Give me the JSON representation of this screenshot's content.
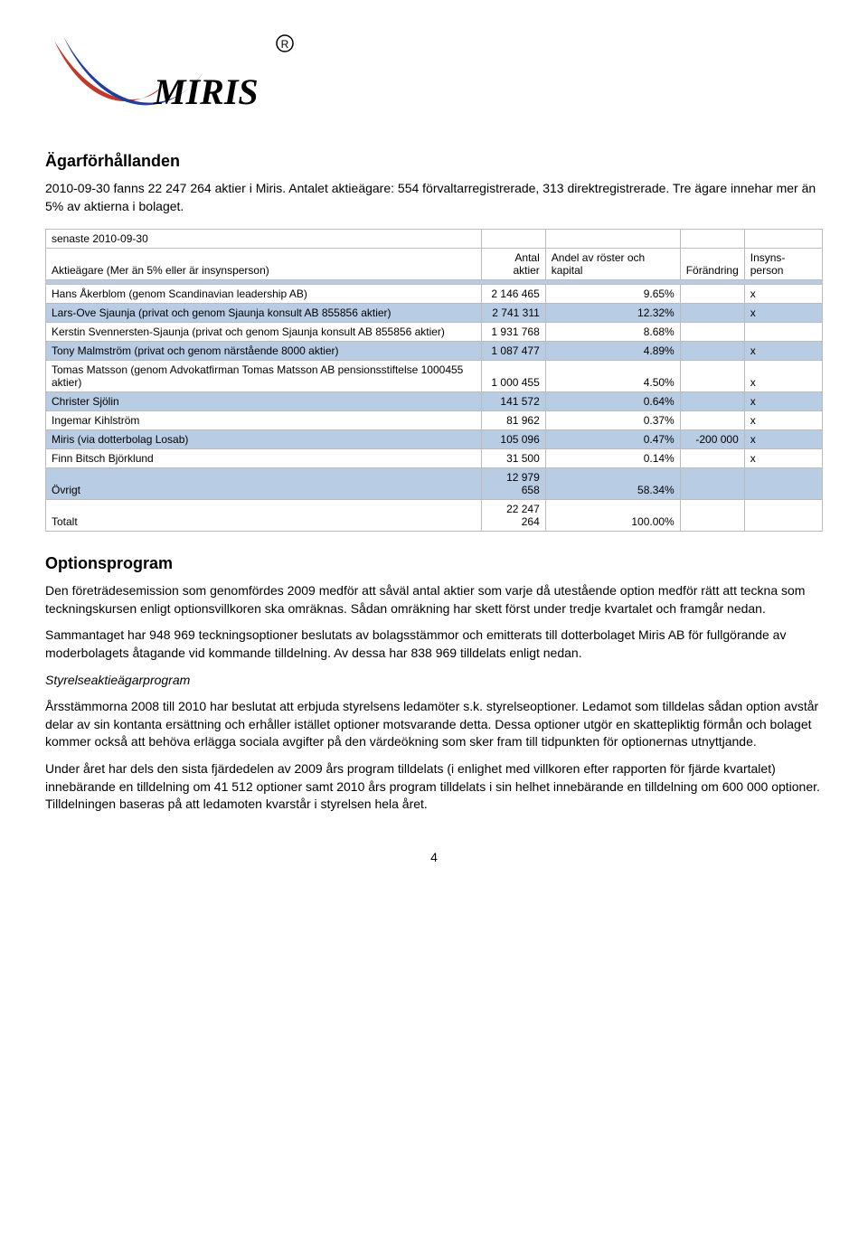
{
  "logo": {
    "text": "MIRIS",
    "reg_mark": "®",
    "swoosh_red": "#c0392b",
    "swoosh_blue": "#1f3f9a",
    "text_color": "#000000"
  },
  "section_owner": {
    "heading": "Ägarförhållanden",
    "para1": "2010-09-30 fanns 22 247 264 aktier i Miris. Antalet aktieägare: 554 förvaltarregistrerade, 313 direktregistrerade. Tre ägare innehar mer än 5% av aktierna i bolaget."
  },
  "table": {
    "colors": {
      "row_blue": "#b8cce4",
      "row_white": "#ffffff",
      "border": "#bbbbbb"
    },
    "date_row": "senaste 2010-09-30",
    "headers": {
      "owner": "Aktieägare (Mer än 5% eller är insynsperson)",
      "shares": "Antal aktier",
      "percent": "Andel av röster och kapital",
      "change": "Förändring",
      "insider": "Insyns-person"
    },
    "rows": [
      {
        "owner": "Hans Åkerblom (genom Scandinavian leadership AB)",
        "shares": "2 146 465",
        "pct": "9.65%",
        "change": "",
        "ins": "x",
        "alt": "white"
      },
      {
        "owner": "Lars-Ove Sjaunja (privat och genom Sjaunja konsult AB 855856 aktier)",
        "shares": "2 741 311",
        "pct": "12.32%",
        "change": "",
        "ins": "x",
        "alt": "blue"
      },
      {
        "owner": "Kerstin Svennersten-Sjaunja (privat och genom Sjaunja konsult AB 855856 aktier)",
        "shares": "1 931 768",
        "pct": "8.68%",
        "change": "",
        "ins": "",
        "alt": "white"
      },
      {
        "owner": "Tony Malmström (privat och genom närstående 8000 aktier)",
        "shares": "1 087 477",
        "pct": "4.89%",
        "change": "",
        "ins": "x",
        "alt": "blue"
      },
      {
        "owner": "Tomas Matsson (genom Advokatfirman Tomas Matsson AB pensionsstiftelse 1000455 aktier)",
        "shares": "1 000 455",
        "pct": "4.50%",
        "change": "",
        "ins": "x",
        "alt": "white"
      },
      {
        "owner": "Christer Sjölin",
        "shares": "141 572",
        "pct": "0.64%",
        "change": "",
        "ins": "x",
        "alt": "blue"
      },
      {
        "owner": "Ingemar Kihlström",
        "shares": "81 962",
        "pct": "0.37%",
        "change": "",
        "ins": "x",
        "alt": "white"
      },
      {
        "owner": "Miris (via dotterbolag Losab)",
        "shares": "105 096",
        "pct": "0.47%",
        "change": "-200 000",
        "ins": "x",
        "alt": "blue"
      },
      {
        "owner": "Finn Bitsch Björklund",
        "shares": "31 500",
        "pct": "0.14%",
        "change": "",
        "ins": "x",
        "alt": "white"
      },
      {
        "owner": "Övrigt",
        "shares": "12 979 658",
        "pct": "58.34%",
        "change": "",
        "ins": "",
        "alt": "blue"
      },
      {
        "owner": "Totalt",
        "shares": "22 247 264",
        "pct": "100.00%",
        "change": "",
        "ins": "",
        "alt": "white"
      }
    ]
  },
  "section_options": {
    "heading": "Optionsprogram",
    "para1": "Den företrädesemission som genomfördes 2009 medför att såväl antal aktier som varje då utestående option medför rätt att teckna som teckningskursen enligt optionsvillkoren ska omräknas. Sådan omräkning har skett först under tredje kvartalet och framgår nedan.",
    "para2": "Sammantaget har 948 969 teckningsoptioner beslutats av bolagsstämmor och emitterats till dotterbolaget Miris AB för fullgörande av moderbolagets åtagande vid kommande tilldelning. Av dessa har 838 969 tilldelats enligt nedan.",
    "subheading": "Styrelseaktieägarprogram",
    "para3": "Årsstämmorna 2008 till 2010 har beslutat att erbjuda styrelsens ledamöter s.k. styrelseoptioner. Ledamot som tilldelas sådan option avstår delar av sin kontanta ersättning och erhåller istället optioner motsvarande detta. Dessa optioner utgör en skattepliktig förmån och bolaget kommer också att behöva erlägga sociala avgifter på den värdeökning som sker fram till tidpunkten för optionernas utnyttjande.",
    "para4": "Under året har dels den sista fjärdedelen av 2009 års program tilldelats (i enlighet med villkoren efter rapporten för fjärde kvartalet) innebärande en tilldelning om 41 512 optioner samt 2010 års program tilldelats i sin helhet innebärande en tilldelning om 600 000 optioner. Tilldelningen baseras på att ledamoten kvarstår i styrelsen hela året."
  },
  "page_number": "4"
}
